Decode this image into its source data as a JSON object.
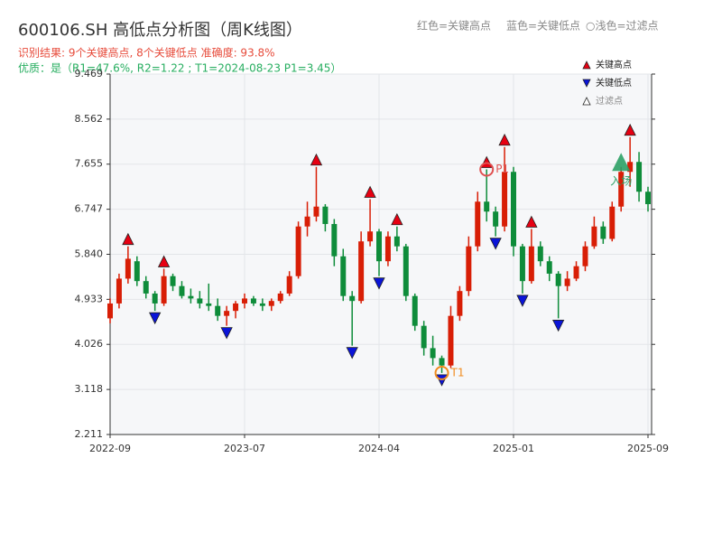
{
  "chart_data": {
    "type": "candlestick",
    "title": "600106.SH 高低点分析图（周K线图）",
    "subtitle": "识别结果: 9个关键高点, 8个关键低点  准确度: 93.8%",
    "subtitle2": "优质：是（R1=47.6%, R2=1.22 ; T1=2024-08-23 P1=3.45）",
    "top_legend": [
      "红色=关键高点",
      "蓝色=关键低点",
      "○浅色=过滤点"
    ],
    "categories": [
      "2022-09",
      null,
      null,
      null,
      null,
      null,
      null,
      null,
      null,
      null,
      null,
      null,
      null,
      null,
      null,
      "2023-07",
      null,
      null,
      null,
      null,
      null,
      null,
      null,
      null,
      null,
      null,
      null,
      null,
      null,
      null,
      "2024-04",
      null,
      null,
      null,
      null,
      null,
      null,
      null,
      null,
      null,
      null,
      null,
      null,
      null,
      null,
      "2025-01",
      null,
      null,
      null,
      null,
      null,
      null,
      null,
      null,
      null,
      null,
      null,
      null,
      null,
      null,
      "2025-09"
    ],
    "open": [
      4.55,
      4.85,
      5.35,
      5.7,
      5.3,
      5.05,
      4.85,
      5.4,
      5.2,
      5.0,
      4.95,
      4.85,
      4.8,
      4.6,
      4.7,
      4.85,
      4.95,
      4.85,
      4.8,
      4.9,
      5.05,
      5.4,
      6.4,
      6.6,
      6.8,
      6.45,
      5.8,
      5.0,
      4.9,
      6.1,
      6.3,
      5.7,
      6.2,
      6.0,
      5.0,
      4.4,
      3.95,
      3.75,
      3.6,
      4.6,
      5.1,
      6.0,
      6.9,
      6.7,
      6.4,
      7.5,
      6.0,
      5.3,
      6.0,
      5.7,
      5.45,
      5.2,
      5.35,
      5.6,
      6.0,
      6.4,
      6.15,
      6.8,
      7.5,
      7.7,
      7.1
    ],
    "high": [
      4.95,
      5.45,
      6.0,
      5.8,
      5.4,
      5.1,
      5.55,
      5.45,
      5.3,
      5.15,
      5.1,
      5.25,
      4.95,
      4.8,
      4.9,
      5.05,
      5.0,
      4.95,
      4.95,
      5.1,
      5.5,
      6.5,
      6.9,
      7.6,
      6.85,
      6.55,
      5.95,
      5.1,
      6.3,
      6.95,
      6.35,
      6.3,
      6.4,
      6.05,
      5.05,
      4.5,
      4.2,
      3.8,
      4.8,
      5.2,
      6.2,
      7.1,
      7.55,
      6.8,
      8.0,
      7.6,
      6.05,
      6.35,
      6.1,
      5.8,
      5.5,
      5.5,
      5.7,
      6.1,
      6.6,
      6.5,
      6.9,
      7.6,
      8.2,
      7.9,
      7.2
    ],
    "low": [
      4.45,
      4.75,
      5.25,
      5.2,
      4.95,
      4.7,
      4.8,
      5.1,
      4.95,
      4.85,
      4.75,
      4.7,
      4.5,
      4.4,
      4.55,
      4.75,
      4.8,
      4.7,
      4.7,
      4.85,
      5.0,
      5.35,
      6.2,
      6.5,
      6.3,
      5.6,
      4.9,
      4.0,
      4.85,
      6.0,
      5.4,
      5.6,
      5.9,
      4.9,
      4.3,
      3.8,
      3.6,
      3.45,
      3.55,
      4.5,
      5.0,
      5.9,
      6.5,
      6.2,
      6.3,
      5.8,
      5.05,
      5.25,
      5.6,
      5.3,
      4.55,
      5.1,
      5.3,
      5.5,
      5.95,
      6.05,
      6.1,
      6.7,
      7.2,
      6.9,
      6.7
    ],
    "close": [
      4.85,
      5.35,
      5.75,
      5.3,
      5.05,
      4.85,
      5.4,
      5.2,
      5.0,
      4.95,
      4.85,
      4.8,
      4.6,
      4.7,
      4.85,
      4.95,
      4.85,
      4.8,
      4.9,
      5.05,
      5.4,
      6.4,
      6.6,
      6.8,
      6.45,
      5.8,
      5.0,
      4.9,
      6.1,
      6.3,
      5.7,
      6.2,
      6.0,
      5.0,
      4.4,
      3.95,
      3.75,
      3.6,
      4.6,
      5.1,
      6.0,
      6.9,
      6.7,
      6.4,
      7.5,
      6.0,
      5.3,
      6.0,
      5.7,
      5.45,
      5.2,
      5.35,
      5.6,
      6.0,
      6.4,
      6.15,
      6.8,
      7.5,
      7.7,
      7.1,
      6.85
    ],
    "up_color": "#d81e06",
    "down_color": "#0e8c3a",
    "key_highs": {
      "name": "关键高点",
      "color": "#e60012",
      "x": [
        2,
        6,
        23,
        29,
        32,
        42,
        44,
        47,
        58
      ],
      "values": [
        6.0,
        5.55,
        7.6,
        6.95,
        6.4,
        7.55,
        8.0,
        6.35,
        8.2
      ]
    },
    "key_lows": {
      "name": "关键低点",
      "color": "#0a14d8",
      "x": [
        5,
        13,
        27,
        30,
        37,
        43,
        46,
        50
      ],
      "values": [
        4.7,
        4.4,
        4.0,
        5.4,
        3.45,
        6.2,
        5.05,
        4.55
      ]
    },
    "filtered": {
      "name": "过滤点",
      "color": "#ffffff"
    },
    "annotations": [
      {
        "text": "T1",
        "x": 37,
        "y": 3.45,
        "color": "#f08c1e"
      },
      {
        "text": "P1",
        "x": 42,
        "y": 7.55,
        "color": "#e05050"
      },
      {
        "text": "入场",
        "x": 57,
        "y": 7.7,
        "color": "#2ca065"
      }
    ],
    "ylim": [
      2.211,
      9.469
    ],
    "yticks": [
      2.211,
      3.118,
      4.026,
      4.933,
      {
        "value": 5.84,
        "label": "5.840"
      },
      6.747,
      7.655,
      8.562,
      9.469
    ],
    "grid": true
  }
}
